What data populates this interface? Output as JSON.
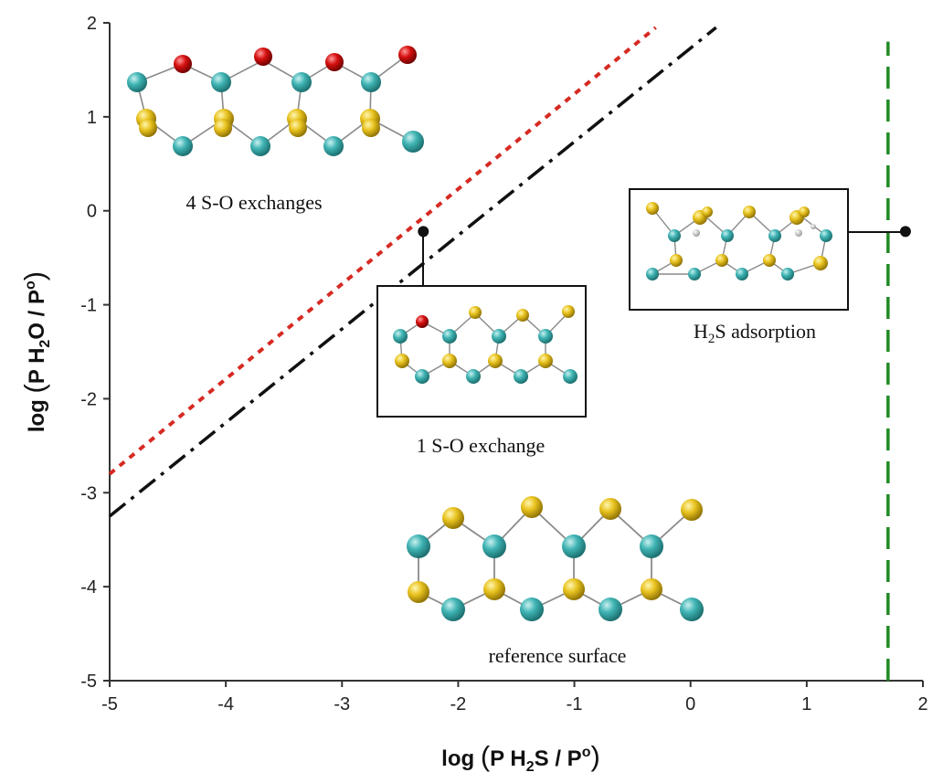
{
  "chart_data": {
    "type": "line",
    "xlim": [
      -5,
      2
    ],
    "ylim": [
      -5,
      2
    ],
    "xticks": [
      -5,
      -4,
      -3,
      -2,
      -1,
      0,
      1,
      2
    ],
    "yticks": [
      -5,
      -4,
      -3,
      -2,
      -1,
      0,
      1,
      2
    ],
    "xlabel": {
      "open": "(",
      "log": "log",
      "p": "P",
      "species": "H",
      "sub": "2",
      "rest": "S / P",
      "sup": "o",
      "close": ")"
    },
    "ylabel": {
      "open": "(",
      "log": "log",
      "p": "P",
      "species": "H",
      "sub": "2",
      "rest": "O / P",
      "sup": "o",
      "close": ")"
    },
    "grid": false,
    "series": [
      {
        "style": "dotted",
        "color": "#d62a22",
        "x": [
          -5,
          -0.3
        ],
        "y": [
          -2.8,
          1.95
        ]
      },
      {
        "style": "dash-dot",
        "color": "#111111",
        "x": [
          -5,
          0.22
        ],
        "y": [
          -3.25,
          1.95
        ]
      },
      {
        "style": "dashed",
        "color": "#1f8a23",
        "x": [
          1.7,
          1.7
        ],
        "y": [
          -5,
          1.8
        ]
      }
    ],
    "annotations": {
      "four_exchange": {
        "text": "4 S-O exchanges"
      },
      "one_exchange": {
        "text": "1 S-O exchange"
      },
      "h2s_adsorption": {
        "main": "H",
        "sub": "2",
        "rest": "S adsorption"
      },
      "reference": {
        "text": "reference surface"
      }
    },
    "markers": [
      {
        "name": "one-exchange-marker",
        "x": -2.3,
        "y": -0.22
      },
      {
        "name": "h2s-adsorption-marker",
        "x": 1.85,
        "y": -0.22
      }
    ]
  },
  "colors": {
    "cyan_atom": "#3fb3b3",
    "yellow_atom": "#e8c21e",
    "red_atom": "#d61010",
    "bond": "#8a8a8a"
  }
}
